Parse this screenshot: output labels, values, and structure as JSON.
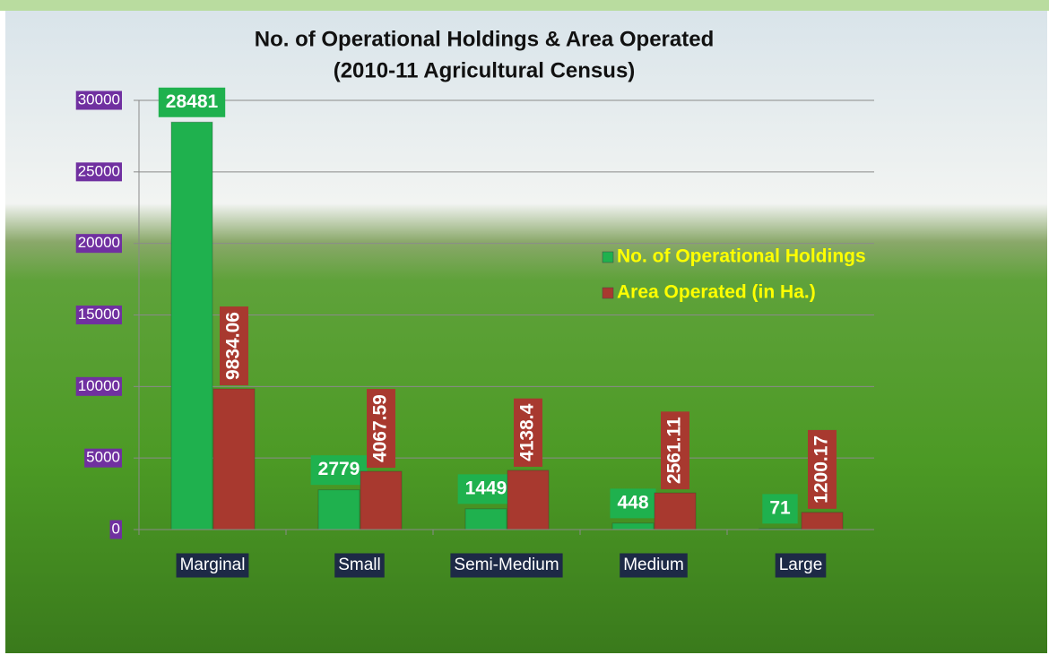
{
  "chart_data": {
    "type": "bar",
    "title": "No. of Operational Holdings & Area Operated",
    "subtitle": "(2010-11 Agricultural Census)",
    "categories": [
      "Marginal",
      "Small",
      "Semi-Medium",
      "Medium",
      "Large"
    ],
    "series": [
      {
        "name": "No. of Operational Holdings",
        "color": "#1fb14e",
        "values": [
          28481,
          2779,
          1449,
          448,
          71
        ]
      },
      {
        "name": "Area Operated (in Ha.)",
        "color": "#a8392f",
        "values": [
          9834.06,
          4067.59,
          4138.4,
          2561.11,
          1200.17
        ]
      }
    ],
    "ylim": [
      0,
      30000
    ],
    "yticks": [
      0,
      5000,
      10000,
      15000,
      20000,
      25000,
      30000
    ],
    "grid": true,
    "legend": "right"
  }
}
